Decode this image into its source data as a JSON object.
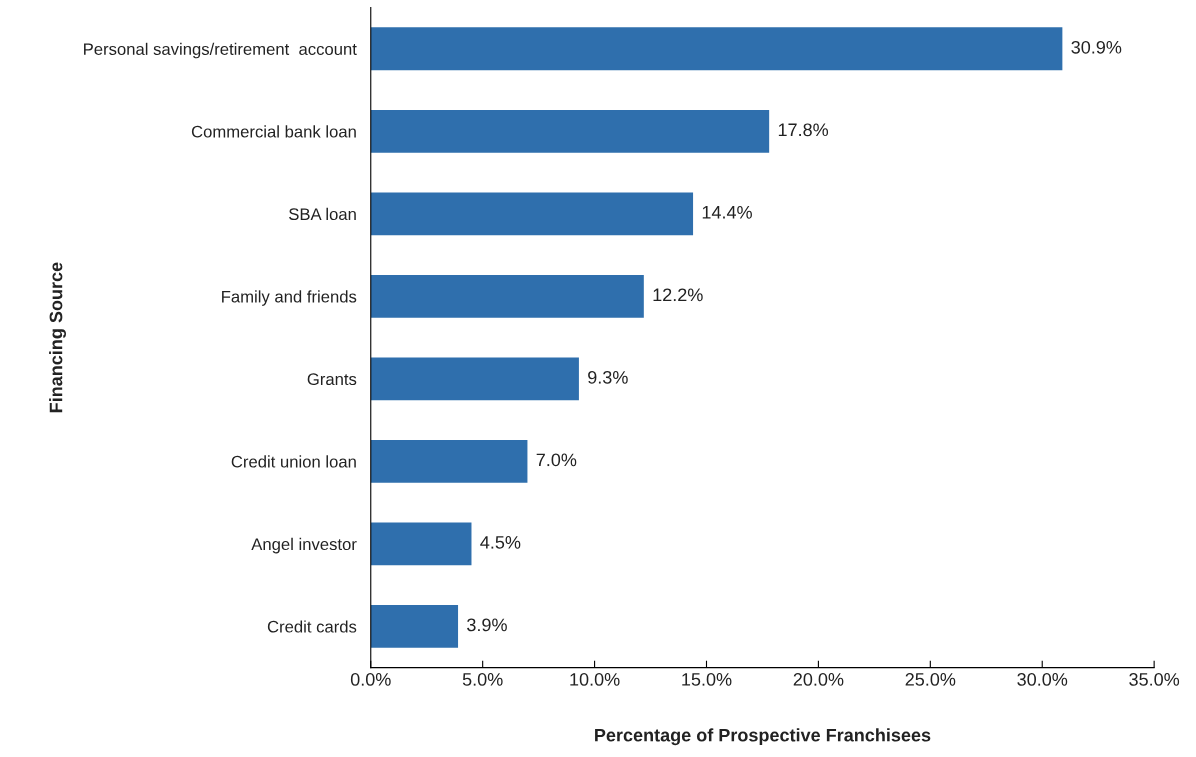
{
  "chart_data": {
    "type": "bar",
    "orientation": "horizontal",
    "xlabel": "Percentage of Prospective Franchisees",
    "ylabel": "Financing Source",
    "categories": [
      "Personal savings/retirement  account",
      "Commercial bank loan",
      "SBA loan",
      "Family and friends",
      "Grants",
      "Credit union loan",
      "Angel investor",
      "Credit cards"
    ],
    "values": [
      30.9,
      17.8,
      14.4,
      12.2,
      9.3,
      7.0,
      4.5,
      3.9
    ],
    "value_labels": [
      "30.9%",
      "17.8%",
      "14.4%",
      "12.2%",
      "9.3%",
      "7.0%",
      "4.5%",
      "3.9%"
    ],
    "color": "#2f6fad",
    "xlim": [
      0,
      35
    ],
    "xticks": [
      {
        "value": 0,
        "label": "0.0%"
      },
      {
        "value": 5,
        "label": "5.0%"
      },
      {
        "value": 10,
        "label": "10.0%"
      },
      {
        "value": 15,
        "label": "15.0%"
      },
      {
        "value": 20,
        "label": "20.0%"
      },
      {
        "value": 25,
        "label": "25.0%"
      },
      {
        "value": 30,
        "label": "30.0%"
      },
      {
        "value": 35,
        "label": "35.0%"
      }
    ],
    "grid": false
  }
}
